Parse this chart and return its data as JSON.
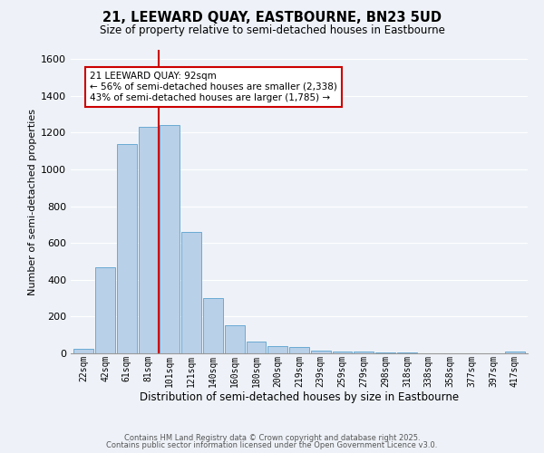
{
  "title": "21, LEEWARD QUAY, EASTBOURNE, BN23 5UD",
  "subtitle": "Size of property relative to semi-detached houses in Eastbourne",
  "xlabel": "Distribution of semi-detached houses by size in Eastbourne",
  "ylabel": "Number of semi-detached properties",
  "categories": [
    "22sqm",
    "42sqm",
    "61sqm",
    "81sqm",
    "101sqm",
    "121sqm",
    "140sqm",
    "160sqm",
    "180sqm",
    "200sqm",
    "219sqm",
    "239sqm",
    "259sqm",
    "279sqm",
    "298sqm",
    "318sqm",
    "338sqm",
    "358sqm",
    "377sqm",
    "397sqm",
    "417sqm"
  ],
  "values": [
    25,
    470,
    1140,
    1230,
    1240,
    660,
    300,
    155,
    65,
    40,
    33,
    15,
    10,
    8,
    5,
    3,
    2,
    2,
    2,
    2,
    10
  ],
  "bar_color": "#b8d0e8",
  "bar_edge_color": "#6aaad4",
  "vline_color": "#cc0000",
  "annotation_text": "21 LEEWARD QUAY: 92sqm\n← 56% of semi-detached houses are smaller (2,338)\n43% of semi-detached houses are larger (1,785) →",
  "annotation_box_color": "#ffffff",
  "annotation_box_edge": "#cc0000",
  "ylim": [
    0,
    1650
  ],
  "yticks": [
    0,
    200,
    400,
    600,
    800,
    1000,
    1200,
    1400,
    1600
  ],
  "background_color": "#eef2f8",
  "grid_color": "#ffffff",
  "footer1": "Contains HM Land Registry data © Crown copyright and database right 2025.",
  "footer2": "Contains public sector information licensed under the Open Government Licence v3.0."
}
